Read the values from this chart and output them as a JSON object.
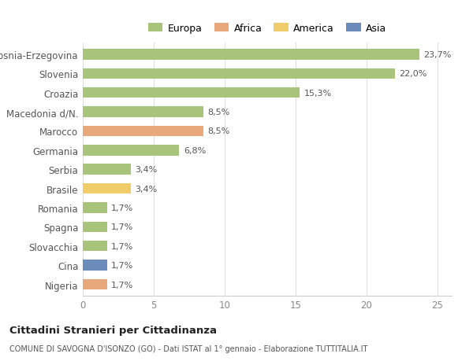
{
  "categories": [
    "Bosnia-Erzegovina",
    "Slovenia",
    "Croazia",
    "Macedonia d/N.",
    "Marocco",
    "Germania",
    "Serbia",
    "Brasile",
    "Romania",
    "Spagna",
    "Slovacchia",
    "Cina",
    "Nigeria"
  ],
  "values": [
    23.7,
    22.0,
    15.3,
    8.5,
    8.5,
    6.8,
    3.4,
    3.4,
    1.7,
    1.7,
    1.7,
    1.7,
    1.7
  ],
  "labels": [
    "23,7%",
    "22,0%",
    "15,3%",
    "8,5%",
    "8,5%",
    "6,8%",
    "3,4%",
    "3,4%",
    "1,7%",
    "1,7%",
    "1,7%",
    "1,7%",
    "1,7%"
  ],
  "continent": [
    "Europa",
    "Europa",
    "Europa",
    "Europa",
    "Africa",
    "Europa",
    "Europa",
    "America",
    "Europa",
    "Europa",
    "Europa",
    "Asia",
    "Africa"
  ],
  "colors": {
    "Europa": "#a8c47a",
    "Africa": "#e8a87c",
    "America": "#f0cc6a",
    "Asia": "#6b8cba"
  },
  "legend_order": [
    "Europa",
    "Africa",
    "America",
    "Asia"
  ],
  "title1": "Cittadini Stranieri per Cittadinanza",
  "title2": "COMUNE DI SAVOGNA D'ISONZO (GO) - Dati ISTAT al 1° gennaio - Elaborazione TUTTITALIA.IT",
  "xlim": [
    0,
    26
  ],
  "xticks": [
    0,
    5,
    10,
    15,
    20,
    25
  ],
  "background_color": "#ffffff",
  "bar_height": 0.55,
  "figsize": [
    6.0,
    4.6
  ],
  "dpi": 100
}
